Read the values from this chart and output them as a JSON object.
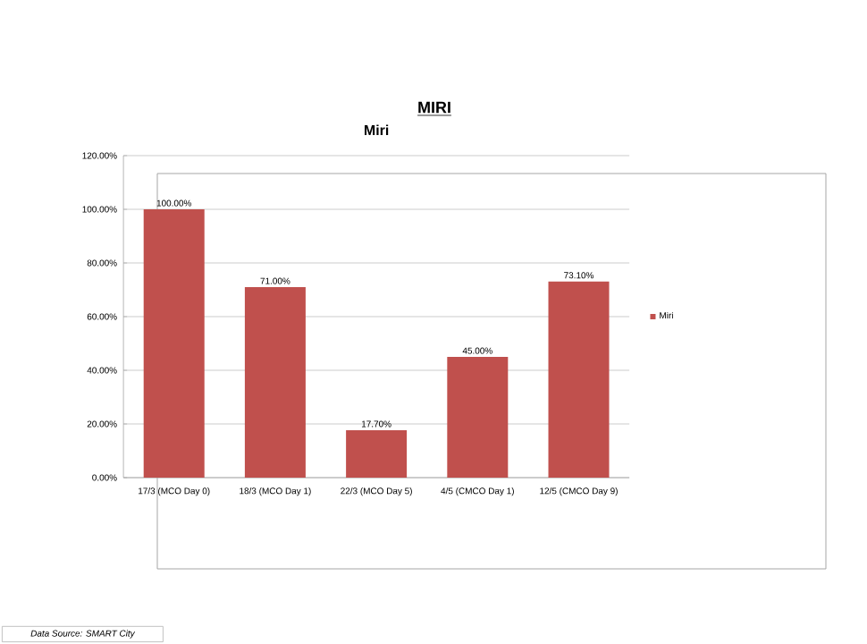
{
  "chart_data": {
    "type": "bar",
    "title": "MIRI",
    "subtitle": "Miri",
    "categories": [
      "17/3 (MCO Day 0)",
      "18/3 (MCO Day 1)",
      "22/3 (MCO Day 5)",
      "4/5 (CMCO Day 1)",
      "12/5 (CMCO Day 9)"
    ],
    "series": [
      {
        "name": "Miri",
        "color": "#c0504d",
        "values": [
          100,
          71,
          17.7,
          45,
          73.1
        ],
        "value_labels": [
          "100.00%",
          "71.00%",
          "17.70%",
          "45.00%",
          "73.10%"
        ]
      }
    ],
    "ylim": [
      0,
      120
    ],
    "yticks": [
      {
        "value": 0,
        "label": "0.00%"
      },
      {
        "value": 20,
        "label": "20.00%"
      },
      {
        "value": 40,
        "label": "40.00%"
      },
      {
        "value": 60,
        "label": "60.00%"
      },
      {
        "value": 80,
        "label": "80.00%"
      },
      {
        "value": 100,
        "label": "100.00%"
      },
      {
        "value": 120,
        "label": "120.00%"
      }
    ],
    "grid": "y",
    "legend": "right",
    "annotations": [
      "Data Source: SMART City"
    ]
  }
}
